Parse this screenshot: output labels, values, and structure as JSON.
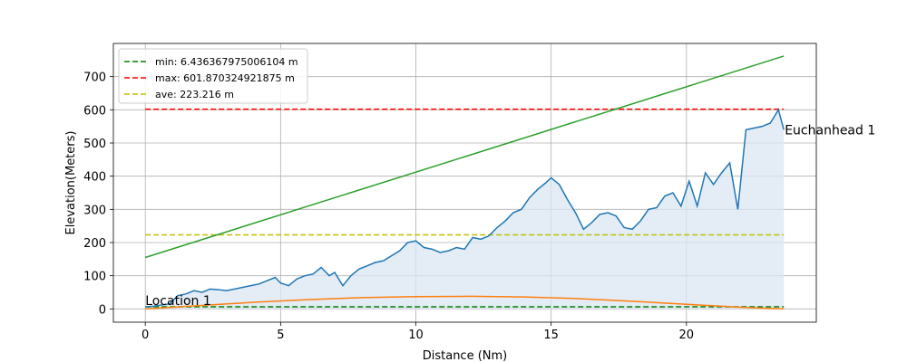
{
  "chart_data": {
    "type": "line",
    "xlabel": "Distance (Nm)",
    "ylabel": "Elevation(Meters)",
    "xlim": [
      -1.18,
      24.8
    ],
    "ylim": [
      -40,
      800
    ],
    "xticks": [
      0,
      5,
      10,
      15,
      20
    ],
    "yticks": [
      0,
      100,
      200,
      300,
      400,
      500,
      600,
      700
    ],
    "grid": true,
    "legend": {
      "placement": "upper-left",
      "entries": [
        {
          "label": "min: 6.436367975006104 m",
          "color": "#008000",
          "style": "dashed"
        },
        {
          "label": "max: 601.870324921875 m",
          "color": "#ff0000",
          "style": "dashed"
        },
        {
          "label": "ave: 223.216 m",
          "color": "#bfbf00",
          "style": "dashed"
        }
      ]
    },
    "annotations": [
      {
        "text": "Location 1",
        "x": 0,
        "y": 6
      },
      {
        "text": "Euchanhead 1",
        "x": 23.6,
        "y": 540
      }
    ],
    "hlines": [
      {
        "name": "min",
        "y": 6.436367975006104,
        "color": "#008000",
        "x": [
          0,
          23.6
        ]
      },
      {
        "name": "max",
        "y": 601.870324921875,
        "color": "#ff0000",
        "x": [
          0,
          23.6
        ]
      },
      {
        "name": "ave",
        "y": 223.216,
        "color": "#bfbf00",
        "x": [
          0,
          23.6
        ]
      }
    ],
    "series": [
      {
        "color": "#1f77b4",
        "fill": "#dbe6f3",
        "x": [
          0,
          0.3,
          0.6,
          0.9,
          1.2,
          1.5,
          1.8,
          2.1,
          2.4,
          2.7,
          3.0,
          3.3,
          3.6,
          3.9,
          4.2,
          4.5,
          4.8,
          5.0,
          5.3,
          5.6,
          5.9,
          6.2,
          6.5,
          6.8,
          7.0,
          7.3,
          7.6,
          7.9,
          8.2,
          8.5,
          8.8,
          9.1,
          9.4,
          9.7,
          10.0,
          10.3,
          10.6,
          10.9,
          11.2,
          11.5,
          11.8,
          12.1,
          12.4,
          12.7,
          13.0,
          13.3,
          13.6,
          13.9,
          14.2,
          14.5,
          14.8,
          15.0,
          15.3,
          15.6,
          15.9,
          16.2,
          16.5,
          16.8,
          17.1,
          17.4,
          17.7,
          18.0,
          18.3,
          18.6,
          18.9,
          19.2,
          19.5,
          19.8,
          20.1,
          20.4,
          20.7,
          21.0,
          21.3,
          21.6,
          21.9,
          22.2,
          22.5,
          22.8,
          23.1,
          23.4,
          23.6
        ],
        "y": [
          6,
          8,
          12,
          15,
          40,
          45,
          55,
          50,
          60,
          58,
          55,
          60,
          65,
          70,
          75,
          85,
          95,
          78,
          70,
          90,
          100,
          105,
          125,
          100,
          110,
          70,
          100,
          120,
          130,
          140,
          145,
          160,
          175,
          200,
          205,
          185,
          180,
          170,
          175,
          185,
          180,
          215,
          210,
          220,
          245,
          265,
          290,
          300,
          335,
          360,
          380,
          395,
          375,
          330,
          290,
          240,
          260,
          285,
          290,
          280,
          245,
          240,
          265,
          300,
          305,
          340,
          350,
          310,
          385,
          310,
          410,
          375,
          410,
          440,
          300,
          540,
          545,
          550,
          560,
          600,
          540
        ]
      },
      {
        "color": "#ff7f0e",
        "x": [
          0,
          2,
          4,
          6,
          8,
          10,
          12,
          14,
          16,
          18,
          20,
          22,
          23.6
        ],
        "y": [
          0,
          10,
          20,
          28,
          34,
          37,
          38,
          36,
          31,
          23,
          14,
          5,
          0
        ]
      },
      {
        "color": "#2ca02c",
        "x": [
          0,
          23.6
        ],
        "y": [
          155,
          762
        ]
      }
    ]
  }
}
